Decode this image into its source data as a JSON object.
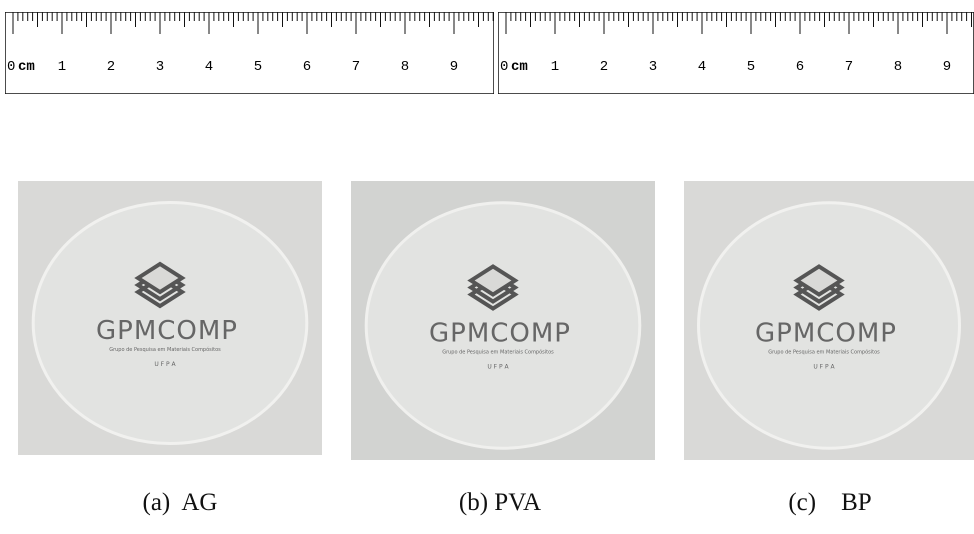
{
  "rulers": [
    {
      "zero": "0",
      "unit": "cm",
      "labels": [
        "1",
        "2",
        "3",
        "4",
        "5",
        "6",
        "7",
        "8",
        "9"
      ]
    },
    {
      "zero": "0",
      "unit": "cm",
      "labels": [
        "1",
        "2",
        "3",
        "4",
        "5",
        "6",
        "7",
        "8",
        "9"
      ]
    }
  ],
  "photos": [
    {
      "logo": "GPMCOMP",
      "subtitle": "Grupo de Pesquisa em Materiais Compósitos",
      "footer": "U F P A",
      "caption": "(a)  AG"
    },
    {
      "logo": "GPMCOMP",
      "subtitle": "Grupo de Pesquisa em Materiais Compósitos",
      "footer": "U F P A",
      "caption": "(b) PVA"
    },
    {
      "logo": "GPMCOMP",
      "subtitle": "Grupo de Pesquisa em Materiais Compósitos",
      "footer": "U F P A",
      "caption": "(c)    BP"
    }
  ]
}
